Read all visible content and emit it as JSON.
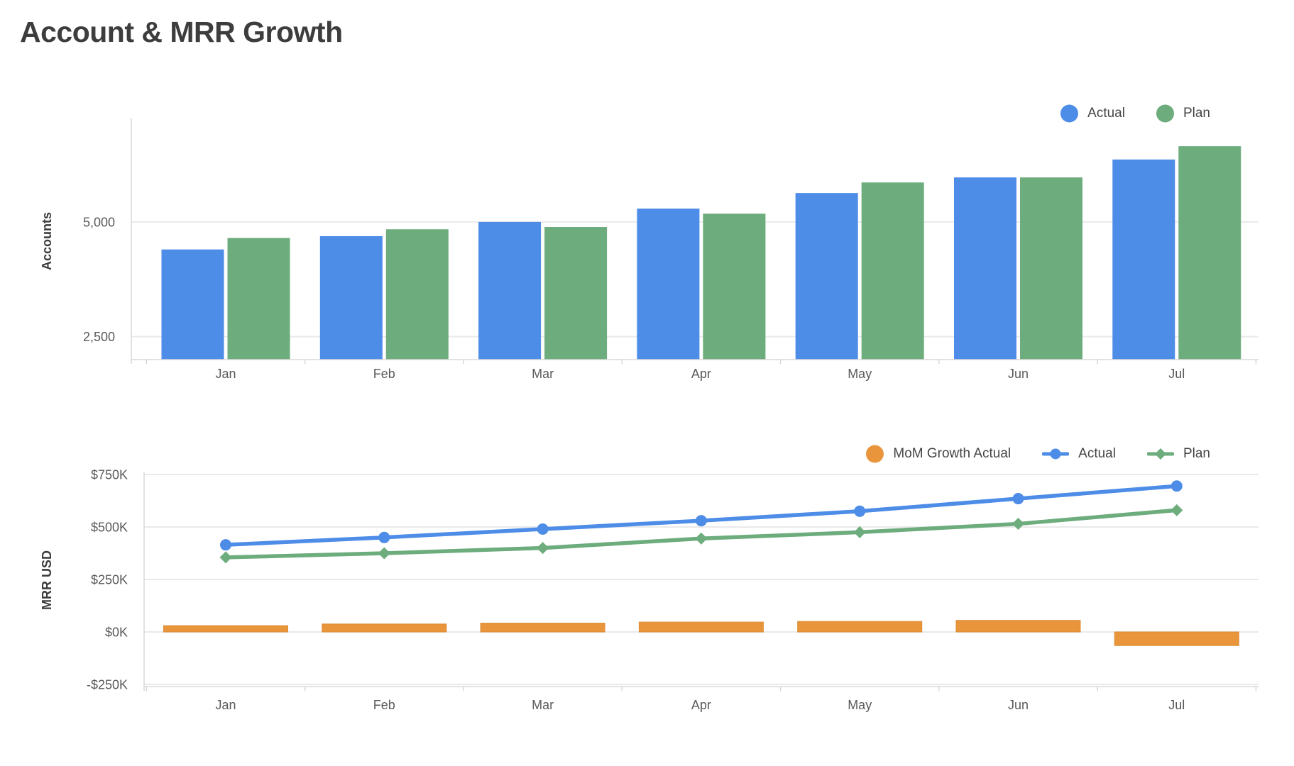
{
  "page": {
    "title": "Account & MRR Growth"
  },
  "colors": {
    "actual_blue": "#4d8ce7",
    "plan_green": "#6dac7c",
    "growth_orange": "#e9953c",
    "growth_orange_border": "#dc8c32",
    "gridline": "#e9e9e9",
    "axis_line": "#d8d8d8",
    "tick_text": "#5a5a5a",
    "axis_title_text": "#3b3b3b",
    "legend_text": "#454545",
    "title_text": "#3d3d3d"
  },
  "chart_data": [
    {
      "type": "bar",
      "name": "accounts",
      "ylabel": "Accounts",
      "categories": [
        "Jan",
        "Feb",
        "Mar",
        "Apr",
        "May",
        "Jun",
        "Jul"
      ],
      "series": [
        {
          "name": "Actual",
          "color": "#4d8ce7",
          "marker": "circle",
          "values": [
            4400,
            4690,
            5000,
            5290,
            5630,
            5970,
            6360
          ]
        },
        {
          "name": "Plan",
          "color": "#6dac7c",
          "marker": "circle",
          "values": [
            4650,
            4840,
            4890,
            5180,
            5860,
            5970,
            6650
          ]
        }
      ],
      "yticks": [
        {
          "value": 5000,
          "label": "5,000"
        },
        {
          "value": 2500,
          "label": "2,500"
        }
      ],
      "ylim": [
        2000,
        7250
      ],
      "grid": true,
      "legend_position": "top-right"
    },
    {
      "type": "line+bar",
      "name": "mrr",
      "ylabel": "MRR USD",
      "units": "thousands of USD",
      "categories": [
        "Jan",
        "Feb",
        "Mar",
        "Apr",
        "May",
        "Jun",
        "Jul"
      ],
      "bar_series": {
        "name": "MoM Growth Actual",
        "color": "#e9953c",
        "values": [
          30,
          38,
          42,
          47,
          50,
          55,
          -65
        ]
      },
      "line_series": [
        {
          "name": "Actual",
          "color": "#4d8ce7",
          "marker": "circle",
          "values": [
            415,
            450,
            490,
            530,
            575,
            635,
            695
          ]
        },
        {
          "name": "Plan",
          "color": "#6dac7c",
          "marker": "diamond",
          "values": [
            355,
            375,
            400,
            445,
            475,
            515,
            580
          ]
        }
      ],
      "yticks": [
        {
          "value": 750,
          "label": "$750K"
        },
        {
          "value": 500,
          "label": "$500K"
        },
        {
          "value": 250,
          "label": "$250K"
        },
        {
          "value": 0,
          "label": "$0K"
        },
        {
          "value": -250,
          "label": "-$250K"
        }
      ],
      "ylim": [
        -290,
        760
      ],
      "grid": true,
      "legend_position": "top-right"
    }
  ]
}
